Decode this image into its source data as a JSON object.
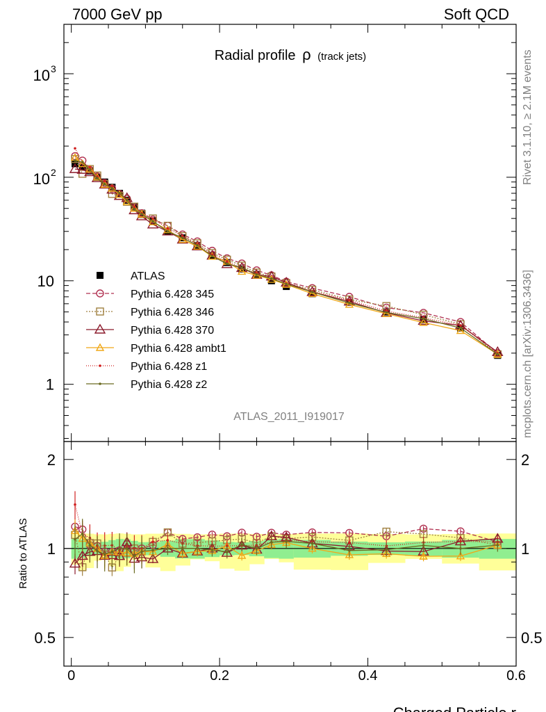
{
  "header": {
    "left": "7000 GeV pp",
    "right": "Soft QCD",
    "title_main": "Radial profile",
    "title_symbol": "ρ",
    "title_sub": "(track jets)",
    "analysis_id": "ATLAS_2011_I919017",
    "side_rivet": "Rivet 3.1.10, ≥ 2.1M events",
    "side_mcplots": "mcplots.cern.ch [arXiv:1306.3436]"
  },
  "axes": {
    "xlabel": "Charged Particle r",
    "ratio_ylabel": "Ratio to ATLAS",
    "x_ticks": [
      "0",
      "0.2",
      "0.4",
      "0.6"
    ],
    "y_ticks_main": [
      "1",
      "10"
    ],
    "y_ticks_main_exp": [
      {
        "base": "10",
        "exp": "2"
      },
      {
        "base": "10",
        "exp": "3"
      }
    ],
    "y_ticks_ratio": [
      "0.5",
      "1",
      "2"
    ]
  },
  "colors": {
    "atlas": "#000000",
    "p345": "#b03050",
    "p346": "#a08040",
    "p370": "#8b1a2b",
    "ambt1": "#f0a818",
    "z1": "#d02020",
    "z2": "#6b6b20",
    "band_green": "#90ee90",
    "band_yellow": "#ffff99"
  },
  "chart_data": {
    "type": "line",
    "title": "Radial profile ρ (track jets)",
    "xlabel": "Charged Particle r",
    "ylabel": "",
    "xlim": [
      -0.01,
      0.6
    ],
    "ylim": [
      0.28,
      3000
    ],
    "yscale": "log",
    "ratio_ylim": [
      0.4,
      2.3
    ],
    "ratio_yscale": "log",
    "x": [
      0.005,
      0.015,
      0.025,
      0.035,
      0.045,
      0.055,
      0.065,
      0.075,
      0.085,
      0.095,
      0.11,
      0.13,
      0.15,
      0.17,
      0.19,
      0.21,
      0.23,
      0.25,
      0.27,
      0.29,
      0.325,
      0.375,
      0.425,
      0.475,
      0.525,
      0.575
    ],
    "series": [
      {
        "name": "ATLAS",
        "marker": "square-filled",
        "values": [
          135,
          125,
          115,
          100,
          90,
          80,
          70,
          60,
          52,
          45,
          38,
          30,
          26,
          22,
          17.5,
          15,
          13,
          11.5,
          10,
          8.8,
          7.5,
          6.2,
          5.0,
          4.2,
          3.5,
          1.9
        ],
        "band_inner": [
          0.93,
          1.07
        ],
        "band_outer": [
          0.88,
          1.12
        ]
      },
      {
        "name": "Pythia 6.428 345",
        "marker": "circle-open",
        "dash": "6,3",
        "values": [
          160,
          145,
          118,
          102,
          88,
          78,
          69,
          62,
          51,
          45,
          39,
          34,
          28,
          24,
          19.5,
          16.5,
          14.7,
          12.6,
          11.3,
          9.8,
          8.5,
          7.0,
          5.5,
          4.9,
          4.0,
          2.0
        ]
      },
      {
        "name": "Pythia 6.428 346",
        "marker": "square-open",
        "dash": "2,2",
        "values": [
          150,
          108,
          120,
          104,
          86,
          69,
          66,
          58,
          52,
          44,
          40,
          34,
          27,
          23,
          18.5,
          16.0,
          14.0,
          12.0,
          11.0,
          9.5,
          8.2,
          6.6,
          5.7,
          4.7,
          3.8,
          1.95
        ]
      },
      {
        "name": "Pythia 6.428 370",
        "marker": "triangle-open",
        "dash": "",
        "values": [
          120,
          118,
          112,
          98,
          85,
          76,
          66,
          63,
          48,
          42,
          35,
          30,
          25,
          21.5,
          17.5,
          14.5,
          13.3,
          11.4,
          11.0,
          9.6,
          7.8,
          6.3,
          4.9,
          4.1,
          3.7,
          2.05
        ]
      },
      {
        "name": "Pythia 6.428 ambt1",
        "marker": "triangle-small-open",
        "dash": "",
        "values": [
          155,
          135,
          120,
          100,
          85,
          78,
          68,
          58,
          50,
          44,
          37,
          31,
          25,
          21.5,
          17.2,
          15.3,
          12.3,
          11.3,
          10.3,
          9.2,
          7.5,
          5.9,
          4.8,
          3.95,
          3.3,
          1.95
        ]
      },
      {
        "name": "Pythia 6.428 z1",
        "marker": "dot",
        "dash": "1,2",
        "values": [
          190,
          140,
          125,
          102,
          92,
          82,
          69,
          61,
          52,
          45,
          40,
          32,
          27,
          22.5,
          17.8,
          15.3,
          13.3,
          11.8,
          10.5,
          9.4,
          7.9,
          6.5,
          5.1,
          4.4,
          3.7,
          2.0
        ]
      },
      {
        "name": "Pythia 6.428 z2",
        "marker": "dot",
        "dash": "",
        "values": [
          145,
          140,
          118,
          98,
          86,
          78,
          70,
          60,
          49,
          44,
          37.5,
          30,
          26,
          22,
          17.3,
          14.6,
          13.4,
          11.5,
          10.5,
          9.3,
          7.8,
          6.1,
          4.95,
          4.3,
          3.5,
          1.95
        ]
      }
    ]
  }
}
